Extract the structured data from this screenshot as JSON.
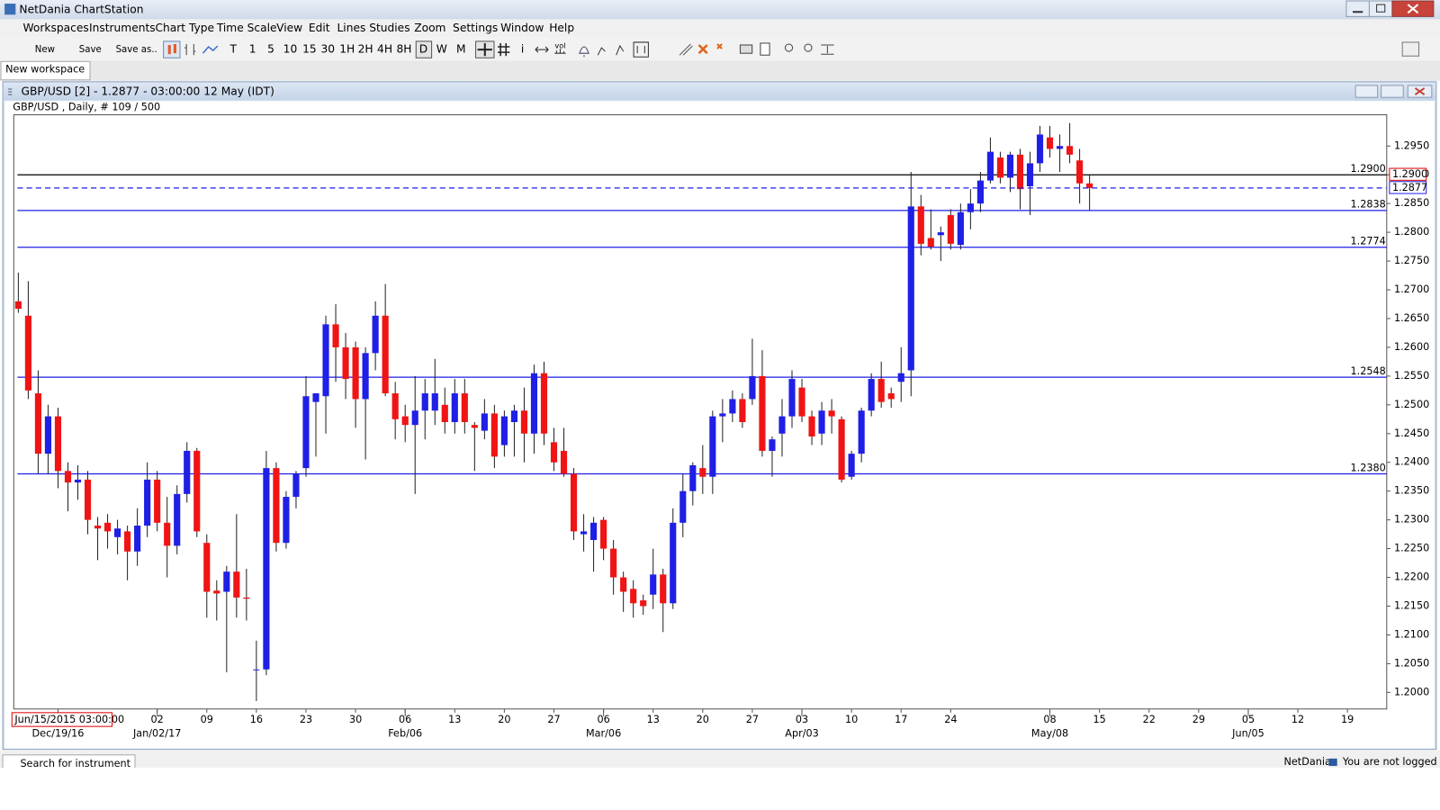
{
  "window": {
    "title": "NetDania ChartStation"
  },
  "menu": [
    "Workspaces",
    "Instruments",
    "Chart Type",
    "Time Scale",
    "View",
    "Edit",
    "Lines",
    "Studies",
    "Zoom",
    "Settings",
    "Window",
    "Help"
  ],
  "toolbar": {
    "new": "New",
    "save": "Save",
    "save_as": "Save as..",
    "periods": [
      "T",
      "1",
      "5",
      "10",
      "15",
      "30",
      "1H",
      "2H",
      "4H",
      "8H",
      "D",
      "W",
      "M"
    ],
    "info": "i",
    "volume": "vol"
  },
  "tab": "New workspace",
  "chart_window_title": "GBP/USD [2] - 1.2877 - 03:00:00  12 May (IDT)",
  "statusbar": {
    "search": "Search for instrument",
    "brand": "NetDania",
    "login": "You are not logged in"
  },
  "chart_data": {
    "type": "candlestick",
    "subtitle": "GBP/USD , Daily, # 109 / 500",
    "cursor_label": "Jun/15/2015 03:00:00",
    "up_color": "#1f1fe6",
    "down_color": "#f01414",
    "wick_color": "#222222",
    "xlim": [
      -0.46,
      137.96
    ],
    "xticks": [
      {
        "value": 14,
        "label": "02"
      },
      {
        "value": 19,
        "label": "09"
      },
      {
        "value": 24,
        "label": "16"
      },
      {
        "value": 29,
        "label": "23"
      },
      {
        "value": 34,
        "label": "30"
      },
      {
        "value": 39,
        "label": "06"
      },
      {
        "value": 44,
        "label": "13"
      },
      {
        "value": 49,
        "label": "20"
      },
      {
        "value": 54,
        "label": "27"
      },
      {
        "value": 59,
        "label": "06"
      },
      {
        "value": 64,
        "label": "13"
      },
      {
        "value": 69,
        "label": "20"
      },
      {
        "value": 74,
        "label": "27"
      },
      {
        "value": 79,
        "label": "03"
      },
      {
        "value": 84,
        "label": "10"
      },
      {
        "value": 89,
        "label": "17"
      },
      {
        "value": 94,
        "label": "24"
      },
      {
        "value": 104,
        "label": "08"
      },
      {
        "value": 109,
        "label": "15"
      },
      {
        "value": 114,
        "label": "22"
      },
      {
        "value": 119,
        "label": "29"
      },
      {
        "value": 124,
        "label": "05"
      },
      {
        "value": 129,
        "label": "12"
      },
      {
        "value": 134,
        "label": "19"
      }
    ],
    "xticks_major": [
      {
        "value": 4,
        "label": "Dec/19/16"
      },
      {
        "value": 14,
        "label": "Jan/02/17"
      },
      {
        "value": 39,
        "label": "Feb/06"
      },
      {
        "value": 59,
        "label": "Mar/06"
      },
      {
        "value": 79,
        "label": "Apr/03"
      },
      {
        "value": 104,
        "label": "May/08"
      },
      {
        "value": 124,
        "label": "Jun/05"
      }
    ],
    "ylim": [
      1.19712,
      1.30043
    ],
    "yticks": [
      {
        "value": 1.2,
        "label": "1.2000"
      },
      {
        "value": 1.205,
        "label": "1.2050"
      },
      {
        "value": 1.21,
        "label": "1.2100"
      },
      {
        "value": 1.215,
        "label": "1.2150"
      },
      {
        "value": 1.22,
        "label": "1.2200"
      },
      {
        "value": 1.225,
        "label": "1.2250"
      },
      {
        "value": 1.23,
        "label": "1.2300"
      },
      {
        "value": 1.235,
        "label": "1.2350"
      },
      {
        "value": 1.24,
        "label": "1.2400"
      },
      {
        "value": 1.245,
        "label": "1.2450"
      },
      {
        "value": 1.25,
        "label": "1.2500"
      },
      {
        "value": 1.255,
        "label": "1.2550"
      },
      {
        "value": 1.26,
        "label": "1.2600"
      },
      {
        "value": 1.265,
        "label": "1.2650"
      },
      {
        "value": 1.27,
        "label": "1.2700"
      },
      {
        "value": 1.275,
        "label": "1.2750"
      },
      {
        "value": 1.28,
        "label": "1.2800"
      },
      {
        "value": 1.285,
        "label": "1.2850"
      },
      {
        "value": 1.29,
        "label": "1.2900"
      },
      {
        "value": 1.295,
        "label": "1.2950"
      }
    ],
    "levels": [
      {
        "value": 1.29,
        "label": "1.2900",
        "color": "#000000"
      },
      {
        "value": 1.2838,
        "label": "1.2838",
        "color": "#1f1fe6"
      },
      {
        "value": 1.2774,
        "label": "1.2774",
        "color": "#1f1fe6"
      },
      {
        "value": 1.2548,
        "label": "1.2548",
        "color": "#1f1fe6"
      },
      {
        "value": 1.238,
        "label": "1.2380",
        "color": "#1f1fe6"
      }
    ],
    "price_markers": [
      {
        "value": 1.29,
        "label": "1.2900",
        "color": "#e00000",
        "line": "none"
      },
      {
        "value": 1.2877,
        "label": "1.2877",
        "color": "#1f1fe6",
        "line": "dashed"
      }
    ],
    "open": [
      1.268,
      1.2655,
      1.252,
      1.2415,
      1.248,
      1.2385,
      1.2365,
      1.237,
      1.229,
      1.2295,
      1.227,
      1.228,
      1.2245,
      1.229,
      1.237,
      1.2295,
      1.2255,
      1.2345,
      1.242,
      1.226,
      1.2177,
      1.2175,
      1.221,
      1.2165,
      1.204,
      1.204,
      1.239,
      1.226,
      1.234,
      1.239,
      1.2505,
      1.2515,
      1.264,
      1.26,
      1.26,
      1.251,
      1.259,
      1.2655,
      1.252,
      1.248,
      1.2465,
      1.249,
      1.249,
      1.25,
      1.247,
      1.252,
      1.2465,
      1.2455,
      1.2485,
      1.243,
      1.247,
      1.249,
      1.245,
      1.2555,
      1.2435,
      1.242,
      1.238,
      1.2275,
      1.2265,
      1.23,
      1.225,
      1.22,
      1.218,
      1.216,
      1.217,
      1.2205,
      1.2155,
      1.2295,
      1.235,
      1.239,
      1.2375,
      1.248,
      1.2485,
      1.251,
      1.251,
      1.255,
      1.242,
      1.245,
      1.248,
      1.253,
      1.248,
      1.245,
      1.249,
      1.2475,
      1.2375,
      1.2415,
      1.249,
      1.2545,
      1.252,
      1.254,
      1.256,
      1.2845,
      1.279,
      1.2795,
      1.283,
      1.2778,
      1.2835,
      1.285,
      1.289,
      1.293,
      1.2895,
      1.2935,
      1.288,
      1.292,
      1.2965,
      1.2945,
      1.295,
      1.2925,
      1.2885
    ],
    "high": [
      1.273,
      1.2715,
      1.256,
      1.25,
      1.2495,
      1.24,
      1.2395,
      1.2385,
      1.2305,
      1.231,
      1.23,
      1.229,
      1.232,
      1.24,
      1.2385,
      1.234,
      1.236,
      1.2435,
      1.2425,
      1.2275,
      1.2195,
      1.222,
      1.231,
      1.2215,
      1.209,
      1.242,
      1.24,
      1.235,
      1.2385,
      1.255,
      1.252,
      1.2655,
      1.2675,
      1.2625,
      1.261,
      1.26,
      1.268,
      1.271,
      1.254,
      1.25,
      1.255,
      1.2545,
      1.258,
      1.253,
      1.2545,
      1.2545,
      1.247,
      1.251,
      1.25,
      1.249,
      1.25,
      1.253,
      1.257,
      1.2575,
      1.246,
      1.246,
      1.239,
      1.231,
      1.2305,
      1.2305,
      1.2265,
      1.221,
      1.2195,
      1.217,
      1.225,
      1.2215,
      1.232,
      1.238,
      1.24,
      1.243,
      1.249,
      1.251,
      1.2525,
      1.252,
      1.2615,
      1.2595,
      1.2445,
      1.251,
      1.256,
      1.2545,
      1.249,
      1.2505,
      1.251,
      1.248,
      1.242,
      1.2495,
      1.2555,
      1.2575,
      1.253,
      1.26,
      1.2905,
      1.2865,
      1.284,
      1.281,
      1.284,
      1.285,
      1.2875,
      1.2905,
      1.2965,
      1.294,
      1.294,
      1.2945,
      1.294,
      1.2985,
      1.2985,
      1.297,
      1.299,
      1.2945,
      1.29
    ],
    "low": [
      1.266,
      1.251,
      1.238,
      1.238,
      1.2355,
      1.2315,
      1.2335,
      1.2275,
      1.223,
      1.225,
      1.224,
      1.2195,
      1.222,
      1.227,
      1.228,
      1.22,
      1.224,
      1.233,
      1.227,
      1.213,
      1.2125,
      1.2035,
      1.213,
      1.2125,
      1.1985,
      1.203,
      1.2245,
      1.225,
      1.232,
      1.2375,
      1.241,
      1.245,
      1.254,
      1.251,
      1.246,
      1.2405,
      1.256,
      1.2515,
      1.244,
      1.2435,
      1.2345,
      1.244,
      1.2465,
      1.245,
      1.245,
      1.245,
      1.2385,
      1.244,
      1.239,
      1.241,
      1.241,
      1.24,
      1.2415,
      1.243,
      1.2385,
      1.2375,
      1.2265,
      1.2245,
      1.221,
      1.223,
      1.217,
      1.214,
      1.213,
      1.2135,
      1.2145,
      1.2105,
      1.2145,
      1.227,
      1.2325,
      1.2345,
      1.2345,
      1.2435,
      1.247,
      1.246,
      1.25,
      1.241,
      1.2375,
      1.241,
      1.246,
      1.247,
      1.243,
      1.243,
      1.245,
      1.2365,
      1.237,
      1.24,
      1.248,
      1.2495,
      1.2495,
      1.2505,
      1.2515,
      1.276,
      1.277,
      1.275,
      1.277,
      1.277,
      1.2805,
      1.2835,
      1.2885,
      1.2885,
      1.287,
      1.284,
      1.283,
      1.2905,
      1.293,
      1.2905,
      1.292,
      1.285,
      1.2838
    ],
    "close": [
      1.2667,
      1.2525,
      1.2415,
      1.248,
      1.2385,
      1.2365,
      1.237,
      1.23,
      1.2285,
      1.228,
      1.2285,
      1.2245,
      1.229,
      1.237,
      1.2295,
      1.2255,
      1.2345,
      1.242,
      1.228,
      1.2175,
      1.2172,
      1.221,
      1.2165,
      1.2163,
      1.204,
      1.239,
      1.226,
      1.234,
      1.238,
      1.2515,
      1.252,
      1.264,
      1.26,
      1.2545,
      1.251,
      1.259,
      1.2655,
      1.252,
      1.2475,
      1.2465,
      1.249,
      1.252,
      1.252,
      1.247,
      1.252,
      1.247,
      1.246,
      1.2485,
      1.241,
      1.248,
      1.249,
      1.245,
      1.2555,
      1.245,
      1.24,
      1.238,
      1.228,
      1.228,
      1.2295,
      1.225,
      1.22,
      1.2175,
      1.2155,
      1.215,
      1.2205,
      1.2155,
      1.2295,
      1.235,
      1.2395,
      1.2375,
      1.248,
      1.2485,
      1.251,
      1.247,
      1.255,
      1.242,
      1.244,
      1.248,
      1.2545,
      1.248,
      1.2445,
      1.249,
      1.248,
      1.237,
      1.2415,
      1.249,
      1.2545,
      1.2505,
      1.251,
      1.2555,
      1.2845,
      1.278,
      1.2775,
      1.28,
      1.278,
      1.2835,
      1.285,
      1.289,
      1.294,
      1.2895,
      1.2935,
      1.2875,
      1.292,
      1.297,
      1.2945,
      1.295,
      1.2935,
      1.2885,
      1.2877
    ]
  }
}
